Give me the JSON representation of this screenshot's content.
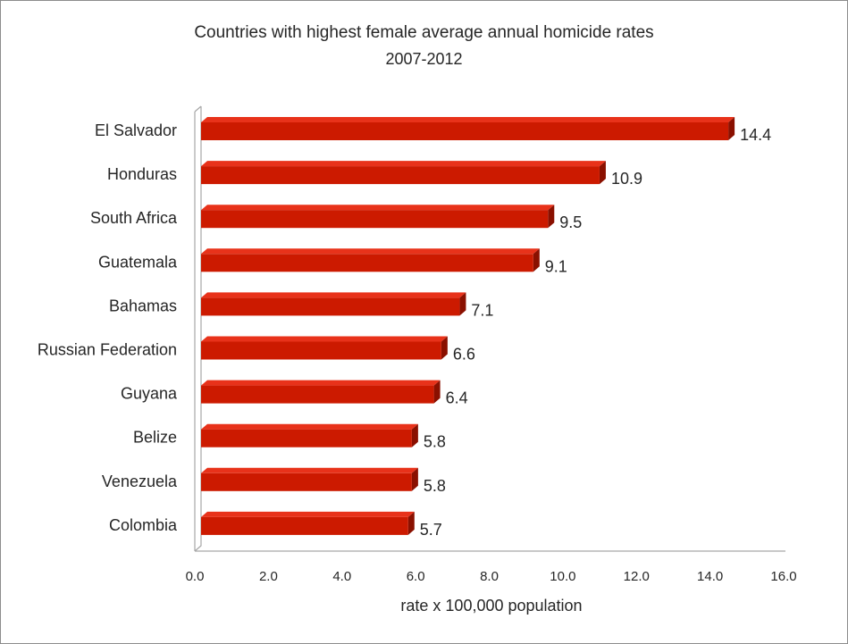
{
  "chart_data": {
    "type": "bar",
    "orientation": "horizontal",
    "title": "Countries with highest female average annual homicide rates",
    "subtitle": "2007-2012",
    "xlabel": "rate x 100,000 population",
    "ylabel": "",
    "categories": [
      "El Salvador",
      "Honduras",
      "South Africa",
      "Guatemala",
      "Bahamas",
      "Russian Federation",
      "Guyana",
      "Belize",
      "Venezuela",
      "Colombia"
    ],
    "values": [
      14.4,
      10.9,
      9.5,
      9.1,
      7.1,
      6.6,
      6.4,
      5.8,
      5.8,
      5.7
    ],
    "data_labels": [
      "14.4",
      "10.9",
      "9.5",
      "9.1",
      "7.1",
      "6.6",
      "6.4",
      "5.8",
      "5.8",
      "5.7"
    ],
    "xlim": [
      0,
      16
    ],
    "x_ticks": [
      "0.0",
      "2.0",
      "4.0",
      "6.0",
      "8.0",
      "10.0",
      "12.0",
      "14.0",
      "16.0"
    ],
    "grid": false,
    "legend": "none",
    "bar_color": "#cc1a00",
    "bar_top_color": "#e8321a",
    "bar_side_color": "#8a1000"
  }
}
